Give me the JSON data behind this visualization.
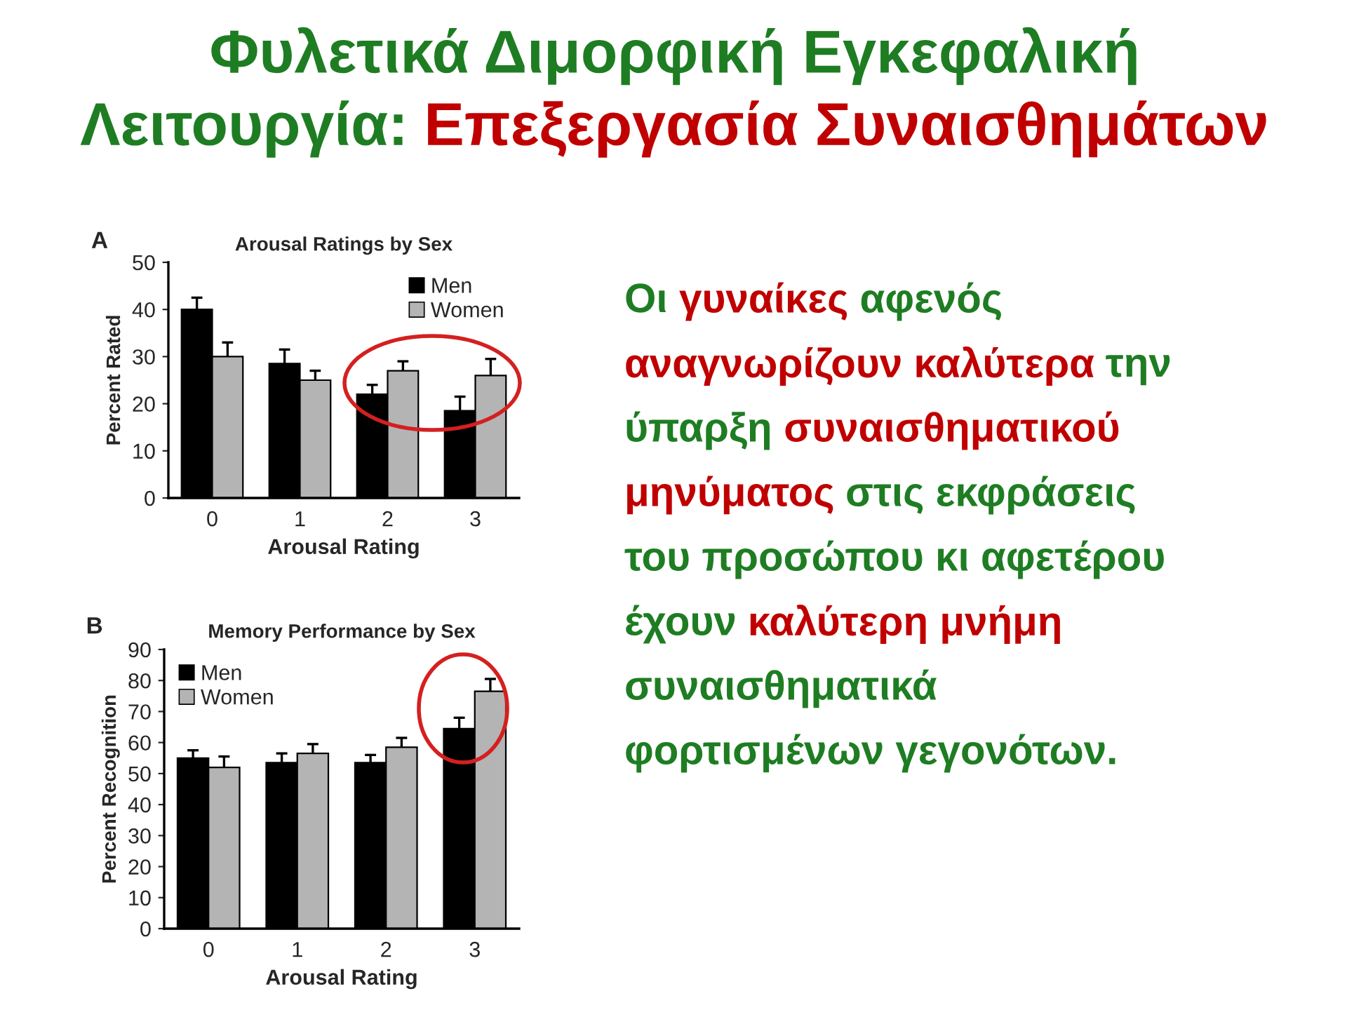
{
  "chart_data": [
    {
      "type": "other",
      "annotations": [
        "Φυλετικά Διμορφική Εγκεφαλική Λειτουργία:",
        "Επεξεργασία Συναισθημάτων"
      ],
      "colors": [
        "#1e7d22",
        "#c00000"
      ]
    },
    {
      "type": "bar",
      "title": "Arousal Ratings by Sex",
      "xlabel": "Arousal Rating",
      "ylabel": "Percent Rated",
      "annotations": [
        "A"
      ],
      "categories": [
        "0",
        "1",
        "2",
        "3"
      ],
      "series": [
        {
          "name": "Men",
          "color": "#000000",
          "values": [
            40,
            28.5,
            22,
            18.5
          ],
          "errors": [
            [
              40,
              42.5
            ],
            [
              28.5,
              31.5
            ],
            [
              22,
              24
            ],
            [
              18.5,
              21.5
            ]
          ]
        },
        {
          "name": "Women",
          "color": "#b4b4b4",
          "values": [
            30,
            25,
            27,
            26
          ],
          "errors": [
            [
              30,
              33
            ],
            [
              25,
              27
            ],
            [
              27,
              29
            ],
            [
              26,
              29.5
            ]
          ]
        }
      ],
      "ylim": [
        0,
        50
      ],
      "yticks": [
        0,
        10,
        20,
        30,
        40,
        50
      ],
      "legend": "top right",
      "grid": false
    },
    {
      "type": "bar",
      "title": "Memory Performance by Sex",
      "xlabel": "Arousal Rating",
      "ylabel": "Percent Recognition",
      "annotations": [
        "B"
      ],
      "categories": [
        "0",
        "1",
        "2",
        "3"
      ],
      "series": [
        {
          "name": "Men",
          "color": "#000000",
          "values": [
            55,
            53.5,
            53.5,
            64.5
          ],
          "errors": [
            [
              55,
              57.5
            ],
            [
              53.5,
              56.5
            ],
            [
              53.5,
              56
            ],
            [
              64.5,
              68
            ]
          ]
        },
        {
          "name": "Women",
          "color": "#b4b4b4",
          "values": [
            52,
            56.5,
            58.5,
            76.5
          ],
          "errors": [
            [
              52,
              55.5
            ],
            [
              56.5,
              59.5
            ],
            [
              58.5,
              61.5
            ],
            [
              76.5,
              80.5
            ]
          ]
        }
      ],
      "ylim": [
        0,
        90
      ],
      "yticks": [
        0,
        10,
        20,
        30,
        40,
        50,
        60,
        70,
        80,
        90
      ],
      "legend": "top left",
      "grid": false
    },
    {
      "type": "other",
      "annotations": [
        "Οι",
        "γυναίκες",
        "αφενός",
        "αναγνωρίζουν καλύτερα",
        "την ύπαρξη",
        "συναισθηματικού μηνύματος",
        "στις εκφράσεις του προσώπου κι αφετέρου έχουν",
        "καλύτερη μνήμη",
        "συναισθηματικά φορτισμένων γεγονότων."
      ],
      "colors": [
        "#1e7d22",
        "#c00000",
        "#1e7d22",
        "#c00000",
        "#1e7d22",
        "#c00000",
        "#1e7d22",
        "#c00000",
        "#1e7d22"
      ]
    }
  ]
}
